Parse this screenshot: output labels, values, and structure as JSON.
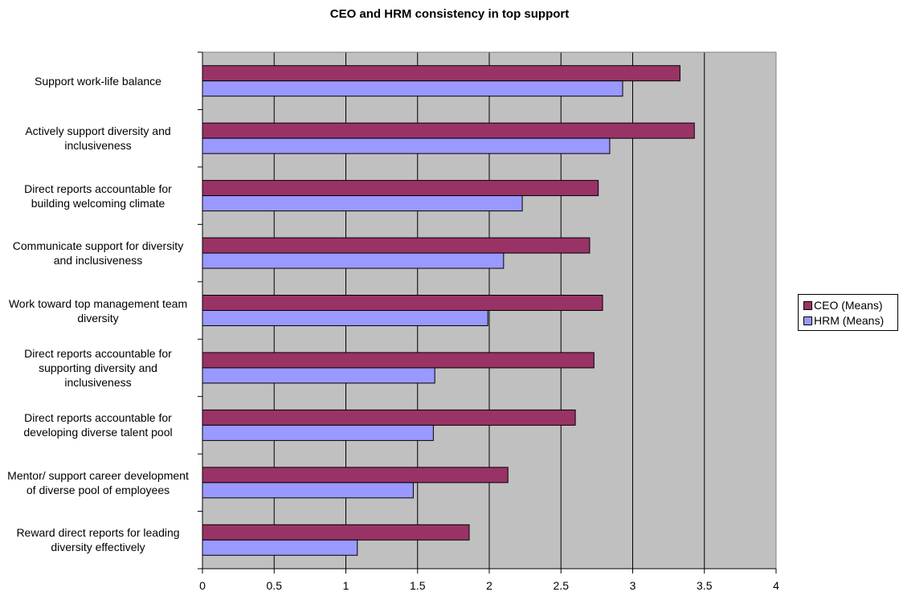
{
  "chart_data": {
    "type": "bar",
    "orientation": "horizontal",
    "title": "CEO and HRM consistency in top support",
    "categories": [
      "Support work-life balance",
      "Actively support diversity and inclusiveness",
      "Direct reports accountable for building welcoming climate",
      "Communicate support for diversity and inclusiveness",
      "Work toward top management team diversity",
      "Direct reports accountable for supporting diversity and inclusiveness",
      "Direct reports accountable for developing diverse talent pool",
      "Mentor/ support career development of diverse pool of employees",
      "Reward direct reports for leading diversity effectively"
    ],
    "series": [
      {
        "name": "CEO (Means)",
        "color": "#993366",
        "values": [
          3.33,
          3.43,
          2.76,
          2.7,
          2.79,
          2.73,
          2.6,
          2.13,
          1.86
        ]
      },
      {
        "name": "HRM (Means)",
        "color": "#9999ff",
        "values": [
          2.93,
          2.84,
          2.23,
          2.1,
          1.99,
          1.62,
          1.61,
          1.47,
          1.08
        ]
      }
    ],
    "xlim": [
      0,
      4
    ],
    "xticks": [
      "0",
      "0.5",
      "1",
      "1.5",
      "2",
      "2.5",
      "3",
      "3.5",
      "4"
    ],
    "plot_background": "#c0c0c0",
    "grid": true,
    "legend_position": "right"
  }
}
